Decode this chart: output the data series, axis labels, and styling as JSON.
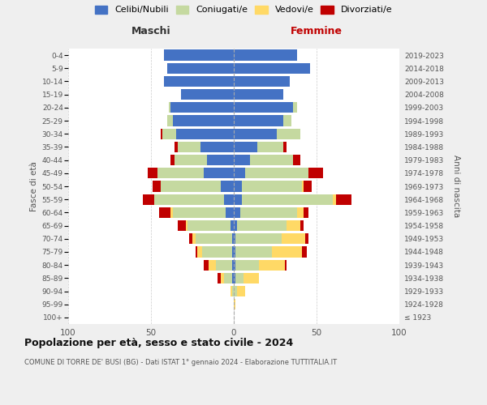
{
  "age_groups": [
    "100+",
    "95-99",
    "90-94",
    "85-89",
    "80-84",
    "75-79",
    "70-74",
    "65-69",
    "60-64",
    "55-59",
    "50-54",
    "45-49",
    "40-44",
    "35-39",
    "30-34",
    "25-29",
    "20-24",
    "15-19",
    "10-14",
    "5-9",
    "0-4"
  ],
  "birth_years": [
    "≤ 1923",
    "1924-1928",
    "1929-1933",
    "1934-1938",
    "1939-1943",
    "1944-1948",
    "1949-1953",
    "1954-1958",
    "1959-1963",
    "1964-1968",
    "1969-1973",
    "1974-1978",
    "1979-1983",
    "1984-1988",
    "1989-1993",
    "1994-1998",
    "1999-2003",
    "2004-2008",
    "2009-2013",
    "2014-2018",
    "2019-2023"
  ],
  "males_celibi": [
    0,
    0,
    0,
    1,
    1,
    1,
    1,
    2,
    5,
    6,
    8,
    18,
    16,
    20,
    35,
    37,
    38,
    32,
    42,
    40,
    42
  ],
  "males_coniugati": [
    0,
    0,
    1,
    5,
    10,
    18,
    22,
    26,
    32,
    42,
    36,
    28,
    20,
    14,
    8,
    3,
    1,
    0,
    0,
    0,
    0
  ],
  "males_vedovi": [
    0,
    0,
    1,
    2,
    4,
    3,
    2,
    1,
    1,
    0,
    0,
    0,
    0,
    0,
    0,
    0,
    0,
    0,
    0,
    0,
    0
  ],
  "males_divorziati": [
    0,
    0,
    0,
    2,
    3,
    1,
    2,
    5,
    7,
    7,
    5,
    6,
    2,
    2,
    1,
    0,
    0,
    0,
    0,
    0,
    0
  ],
  "females_nubili": [
    0,
    0,
    0,
    1,
    1,
    1,
    1,
    2,
    4,
    5,
    5,
    7,
    10,
    14,
    26,
    30,
    36,
    30,
    34,
    46,
    38
  ],
  "females_coniugate": [
    0,
    0,
    2,
    5,
    14,
    22,
    28,
    30,
    34,
    55,
    36,
    38,
    26,
    16,
    14,
    5,
    2,
    0,
    0,
    0,
    0
  ],
  "females_vedove": [
    0,
    1,
    5,
    9,
    16,
    18,
    14,
    8,
    4,
    2,
    1,
    0,
    0,
    0,
    0,
    0,
    0,
    0,
    0,
    0,
    0
  ],
  "females_divorziate": [
    0,
    0,
    0,
    0,
    1,
    3,
    2,
    2,
    3,
    9,
    5,
    9,
    4,
    2,
    0,
    0,
    0,
    0,
    0,
    0,
    0
  ],
  "color_celibi": "#4472C4",
  "color_coniugati": "#c5d9a0",
  "color_vedovi": "#FFD966",
  "color_divorziati": "#C00000",
  "legend_labels": [
    "Celibi/Nubili",
    "Coniugati/e",
    "Vedovi/e",
    "Divorziati/e"
  ],
  "title": "Popolazione per età, sesso e stato civile - 2024",
  "subtitle": "COMUNE DI TORRE DE' BUSI (BG) - Dati ISTAT 1° gennaio 2024 - Elaborazione TUTTITALIA.IT",
  "header_maschi": "Maschi",
  "header_femmine": "Femmine",
  "ylabel_left": "Fasce di età",
  "ylabel_right": "Anni di nascita",
  "xlim": 100,
  "bg_color": "#efefef",
  "plot_bg": "#ffffff"
}
